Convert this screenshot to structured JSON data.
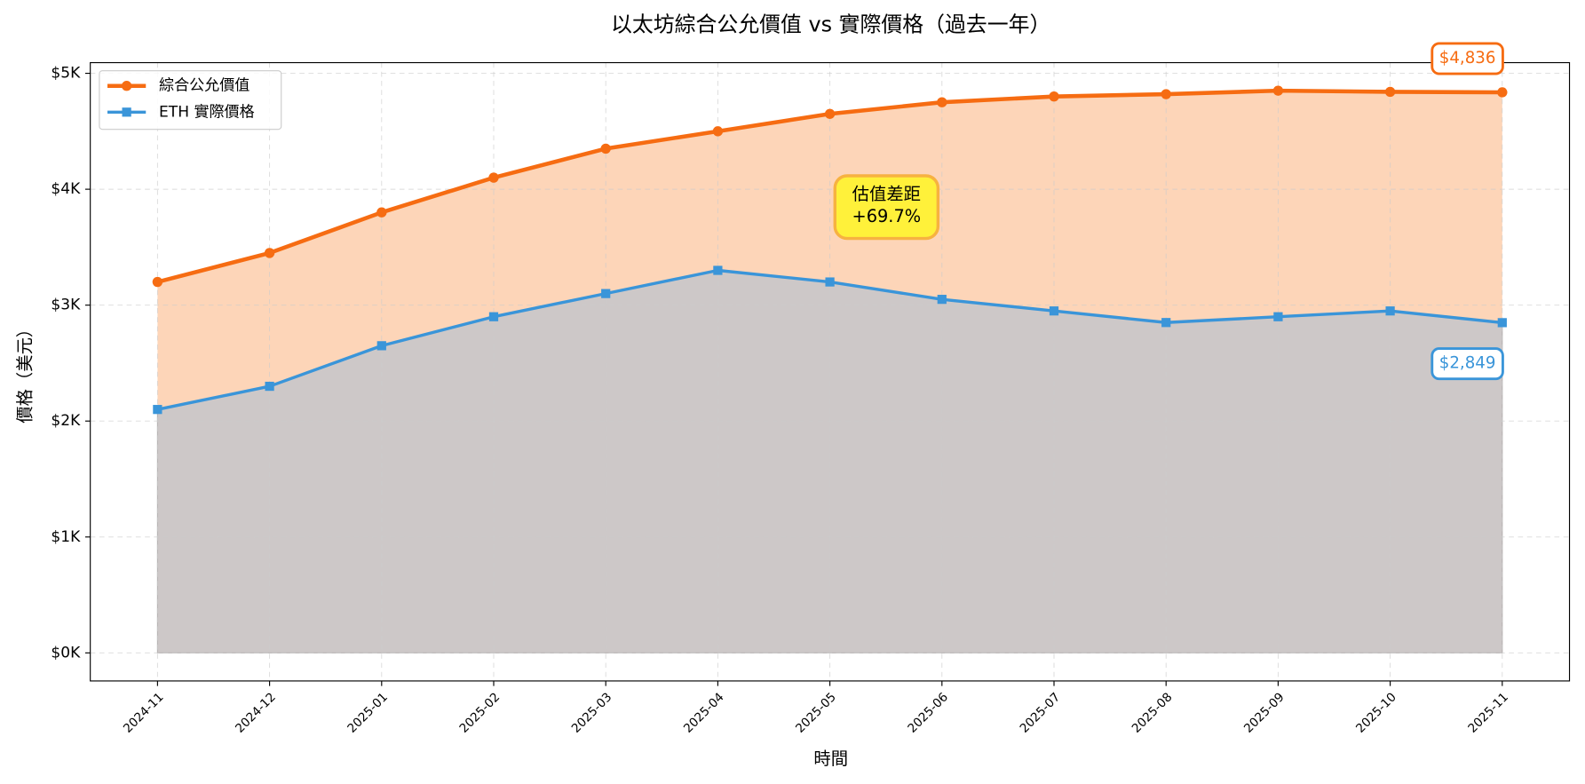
{
  "chart_data": {
    "type": "line",
    "title": "以太坊綜合公允價值 vs 實際價格（過去一年）",
    "x_label": "時間",
    "y_label": "價格（美元）",
    "categories": [
      "2024-11",
      "2024-12",
      "2025-01",
      "2025-02",
      "2025-03",
      "2025-04",
      "2025-05",
      "2025-06",
      "2025-07",
      "2025-08",
      "2025-09",
      "2025-10",
      "2025-11"
    ],
    "series": [
      {
        "name": "綜合公允價值",
        "color": "#f66c12",
        "fill": "#fdd5b8",
        "marker": "circle",
        "values": [
          3200,
          3450,
          3800,
          4100,
          4350,
          4500,
          4650,
          4750,
          4800,
          4820,
          4850,
          4840,
          4836
        ]
      },
      {
        "name": "ETH 實際價格",
        "color": "#3a95d9",
        "fill": "#cdc8c8",
        "marker": "square",
        "values": [
          2100,
          2300,
          2650,
          2900,
          3100,
          3300,
          3200,
          3050,
          2950,
          2850,
          2900,
          2950,
          2849
        ]
      }
    ],
    "end_labels": [
      "$4,836",
      "$2,849"
    ],
    "gap_annotation": [
      "估值差距",
      "+69.7%"
    ],
    "ylim": [
      -242,
      5092
    ],
    "yticks": [
      {
        "value": 0,
        "label": "$0K"
      },
      {
        "value": 1000,
        "label": "$1K"
      },
      {
        "value": 2000,
        "label": "$2K"
      },
      {
        "value": 3000,
        "label": "$3K"
      },
      {
        "value": 4000,
        "label": "$4K"
      },
      {
        "value": 5000,
        "label": "$5K"
      }
    ],
    "grid": true,
    "legend": "upper left"
  }
}
